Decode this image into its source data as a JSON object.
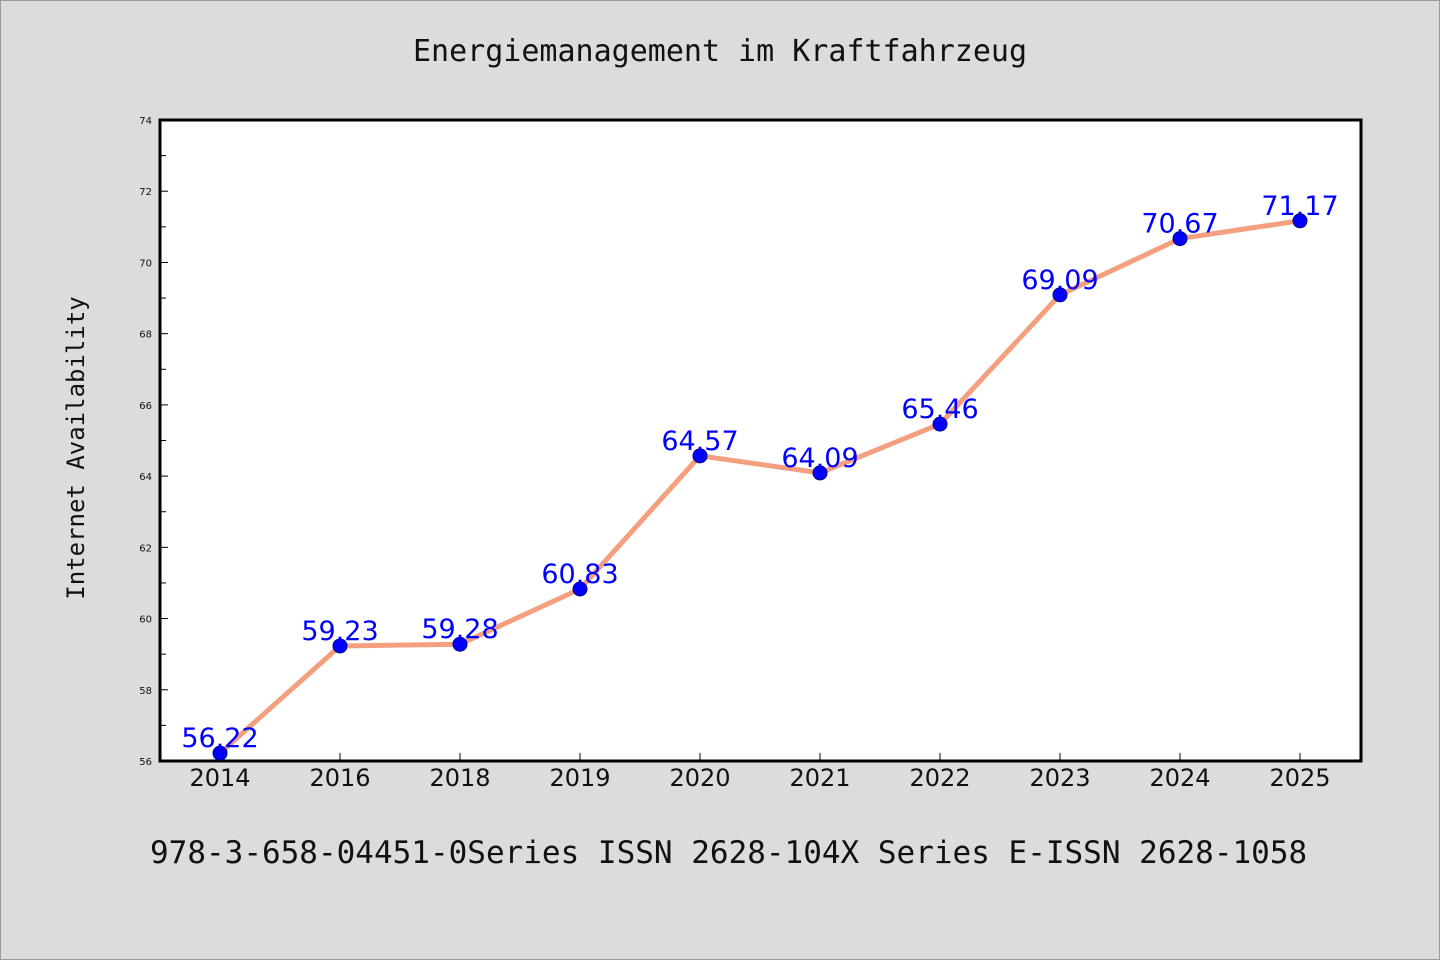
{
  "chart_data": {
    "type": "line",
    "title": "Energiemanagement im Kraftfahrzeug",
    "ylabel": "Internet Availability",
    "xlabel": "",
    "categories": [
      "2014",
      "2016",
      "2018",
      "2019",
      "2020",
      "2021",
      "2022",
      "2023",
      "2024",
      "2025"
    ],
    "values": [
      56.22,
      59.23,
      59.28,
      60.83,
      64.57,
      64.09,
      65.46,
      69.09,
      70.67,
      71.17
    ],
    "value_labels": [
      "56.22",
      "59.23",
      "59.28",
      "60.83",
      "64.57",
      "64.09",
      "65.46",
      "69.09",
      "70.67",
      "71.17"
    ],
    "ylim": [
      56,
      74
    ],
    "yticks": [
      "56",
      "58",
      "60",
      "62",
      "64",
      "66",
      "68",
      "70",
      "72",
      "74"
    ],
    "grid": false,
    "line_color": "#f4a07f",
    "marker_color": "#0000ff",
    "label_color": "#0000ff"
  },
  "footer_text": "978-3-658-04451-0Series ISSN 2628-104X Series E-ISSN 2628-1058"
}
